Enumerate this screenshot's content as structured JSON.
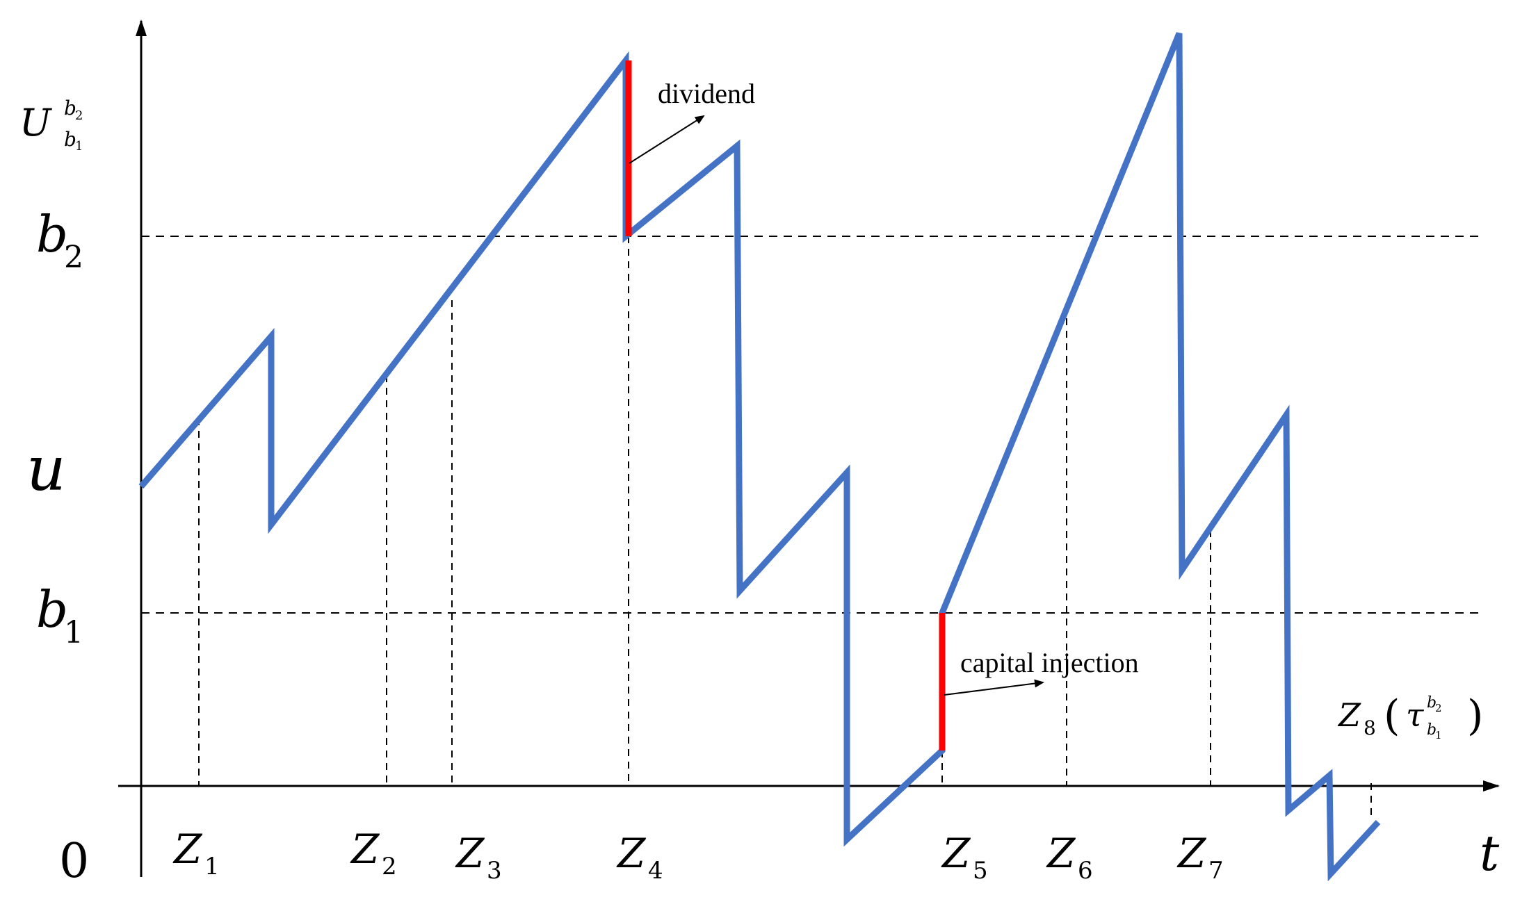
{
  "axes": {
    "y_label": {
      "letter": "U",
      "superscript": "b",
      "superscript_sub": "2",
      "subscript": "b",
      "subscript_sub": "1"
    },
    "x_label": "t",
    "origin": "0"
  },
  "levels": [
    {
      "key": "b2",
      "letter": "b",
      "sub": "2"
    },
    {
      "key": "u",
      "letter": "u",
      "sub": ""
    },
    {
      "key": "b1",
      "letter": "b",
      "sub": "1"
    }
  ],
  "claim_times": [
    {
      "letter": "Z",
      "sub": "1"
    },
    {
      "letter": "Z",
      "sub": "2"
    },
    {
      "letter": "Z",
      "sub": "3"
    },
    {
      "letter": "Z",
      "sub": "4"
    },
    {
      "letter": "Z",
      "sub": "5"
    },
    {
      "letter": "Z",
      "sub": "6"
    },
    {
      "letter": "Z",
      "sub": "7"
    }
  ],
  "z8": {
    "letter": "Z",
    "sub": "8",
    "open": "(",
    "tau": "τ",
    "tau_sup": "b",
    "tau_sup_sub": "2",
    "tau_sub": "b",
    "tau_sub_sub": "1",
    "close": ")"
  },
  "annotations": {
    "dividend": "dividend",
    "capital_injection": "capital injection"
  },
  "colors": {
    "path": "#4472C4",
    "jump": "#FF0000",
    "axis": "#000000"
  }
}
